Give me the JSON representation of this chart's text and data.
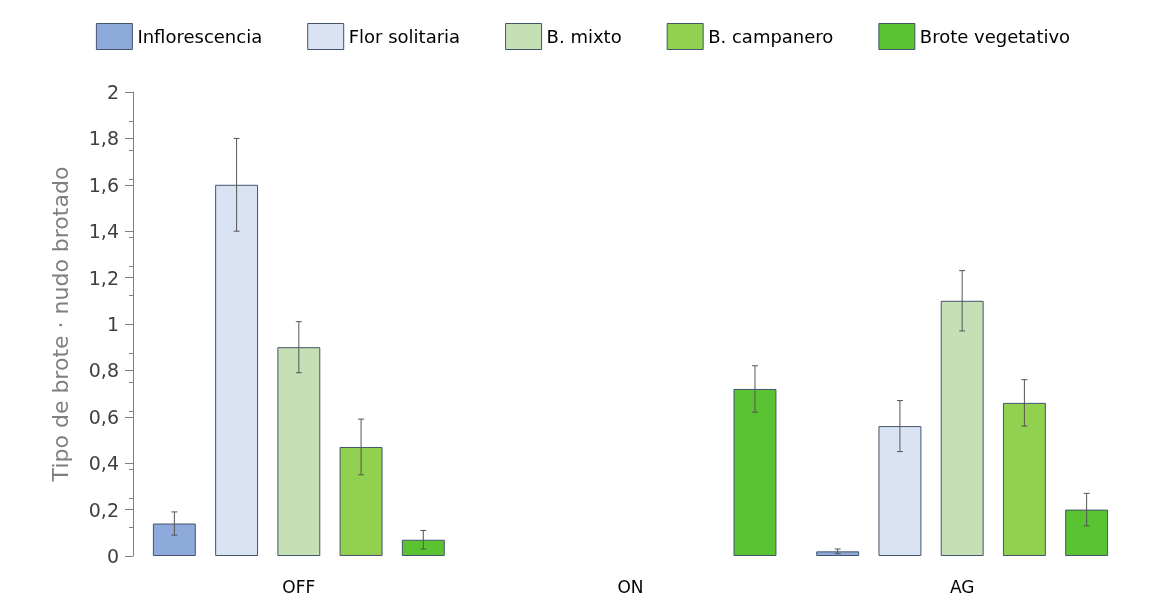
{
  "chart_data": {
    "type": "bar",
    "ylabel": "Tipo de brote · nudo brotado",
    "categories": [
      "OFF",
      "ON",
      "AG"
    ],
    "series": [
      {
        "name": "Inflorescencia",
        "color": "#8eaadb",
        "values": [
          0.14,
          0,
          0.02
        ],
        "errors": [
          0.05,
          null,
          0.01
        ]
      },
      {
        "name": "Flor solitaria",
        "color": "#dae3f3",
        "values": [
          1.6,
          0,
          0.56
        ],
        "errors": [
          0.2,
          null,
          0.11
        ]
      },
      {
        "name": "B. mixto",
        "color": "#c5e0b4",
        "values": [
          0.9,
          0,
          1.1
        ],
        "errors": [
          0.11,
          null,
          0.13
        ]
      },
      {
        "name": "B. campanero",
        "color": "#92d050",
        "values": [
          0.47,
          0,
          0.66
        ],
        "errors": [
          0.12,
          null,
          0.1
        ]
      },
      {
        "name": "Brote vegetativo",
        "color": "#5ac332",
        "values": [
          0.07,
          0.72,
          0.2
        ],
        "errors": [
          0.04,
          0.1,
          0.07
        ]
      }
    ],
    "ylim": [
      0,
      2
    ],
    "yticks": [
      0,
      {
        "value": 0.2,
        "label": "0,2"
      },
      {
        "value": 0.4,
        "label": "0,4"
      },
      {
        "value": 0.6,
        "label": "0,6"
      },
      {
        "value": 0.8,
        "label": "0,8"
      },
      1,
      {
        "value": 1.2,
        "label": "1,2"
      },
      {
        "value": 1.4,
        "label": "1,4"
      },
      {
        "value": 1.6,
        "label": "1,6"
      },
      {
        "value": 1.8,
        "label": "1,8"
      },
      2
    ],
    "grid": false,
    "legend": "top"
  }
}
